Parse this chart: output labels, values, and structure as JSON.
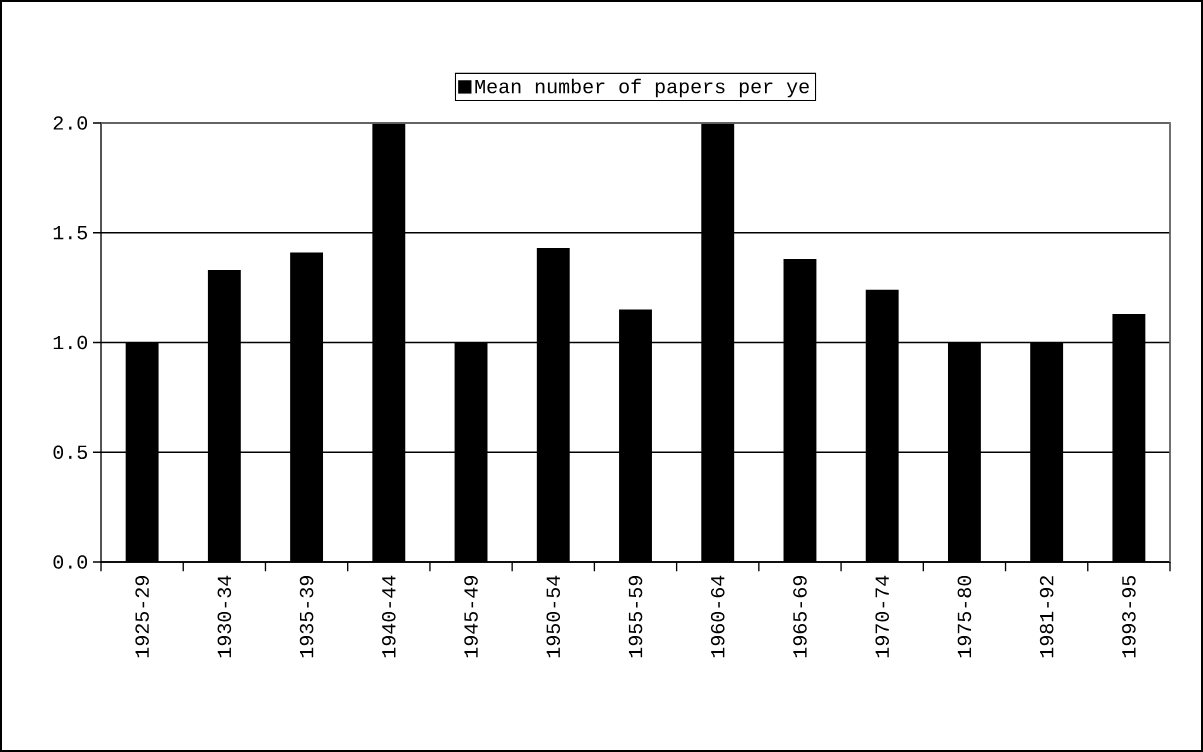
{
  "chart_data": {
    "type": "bar",
    "categories": [
      "1925-29",
      "1930-34",
      "1935-39",
      "1940-44",
      "1945-49",
      "1950-54",
      "1955-59",
      "1960-64",
      "1965-69",
      "1970-74",
      "1975-80",
      "1981-92",
      "1993-95"
    ],
    "series": [
      {
        "name": "Mean number of papers per ye",
        "color": "#000000",
        "values": [
          1.0,
          1.33,
          1.41,
          2.0,
          1.0,
          1.43,
          1.15,
          2.0,
          1.38,
          1.24,
          1.0,
          1.0,
          1.13
        ]
      }
    ],
    "ylim": [
      0,
      2
    ],
    "yticks": [
      {
        "value": 0,
        "label": "0.0"
      },
      {
        "value": 0.5,
        "label": "0.5"
      },
      {
        "value": 1,
        "label": "1.0"
      },
      {
        "value": 1.5,
        "label": "1.5"
      },
      {
        "value": 2,
        "label": "2.0"
      }
    ],
    "grid": "y",
    "legend": "top"
  }
}
